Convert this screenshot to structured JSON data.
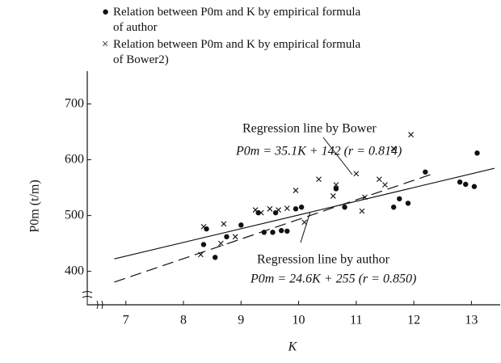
{
  "chart_data": {
    "type": "scatter",
    "xlabel": "K",
    "ylabel": "P0m (t/m)",
    "xlim": [
      6.33,
      13.5
    ],
    "ylim": [
      340,
      740
    ],
    "xticks": [
      7,
      8,
      9,
      10,
      11,
      12,
      13
    ],
    "yticks": [
      400,
      500,
      600,
      700
    ],
    "series": [
      {
        "name": "Relation between P0m and K by empirical formula of author",
        "marker": "dot",
        "color": "#111111",
        "line_style": "solid",
        "fit_slope": 24.6,
        "fit_intercept": 255,
        "fit_x": [
          6.8,
          13.4
        ],
        "x": [
          8.35,
          8.4,
          8.55,
          8.75,
          9.0,
          9.3,
          9.4,
          9.55,
          9.6,
          9.7,
          9.8,
          9.95,
          10.05,
          10.65,
          10.8,
          11.65,
          11.75,
          11.9,
          12.2,
          12.8,
          12.9,
          13.05,
          13.1
        ],
        "values": [
          448,
          476,
          425,
          462,
          483,
          505,
          470,
          470,
          505,
          473,
          472,
          512,
          515,
          548,
          515,
          515,
          530,
          522,
          578,
          560,
          556,
          552,
          612
        ]
      },
      {
        "name": "Relation between P0m and K by empirical formula of Bower2)",
        "marker": "x",
        "color": "#111111",
        "line_style": "dashed",
        "fit_slope": 35.1,
        "fit_intercept": 142,
        "fit_x": [
          6.8,
          12.3
        ],
        "x": [
          8.3,
          8.35,
          8.65,
          8.7,
          8.9,
          9.25,
          9.35,
          9.5,
          9.65,
          9.8,
          9.95,
          10.1,
          10.35,
          10.6,
          10.65,
          11.0,
          11.1,
          11.15,
          11.4,
          11.5,
          11.65,
          11.95
        ],
        "values": [
          430,
          480,
          450,
          485,
          462,
          510,
          505,
          512,
          510,
          513,
          545,
          488,
          565,
          535,
          555,
          575,
          508,
          533,
          565,
          555,
          620,
          645
        ]
      }
    ],
    "annotations": [
      {
        "text": "Regression line by Bower",
        "equation": "P0m = 35.1K + 142 (r = 0.814)"
      },
      {
        "text": "Regression line by author",
        "equation": "P0m = 24.6K + 255 (r = 0.850)"
      }
    ]
  }
}
